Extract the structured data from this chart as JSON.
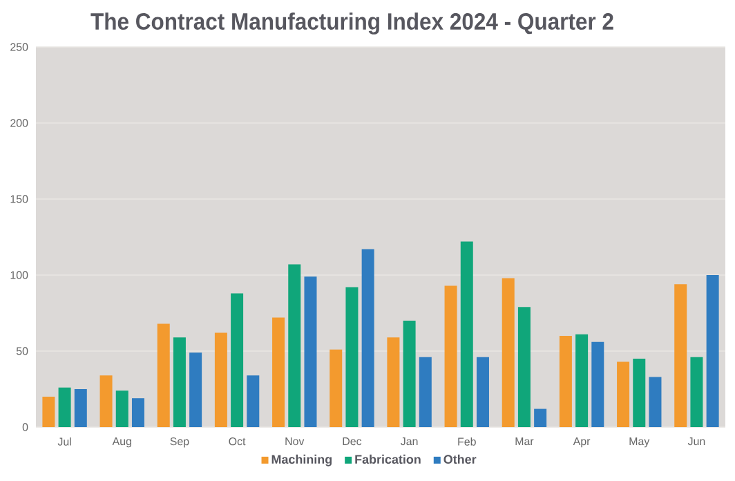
{
  "chart_data": {
    "type": "bar",
    "title": "The Contract Manufacturing Index 2024 - Quarter 2",
    "categories": [
      "Jul",
      "Aug",
      "Sep",
      "Oct",
      "Nov",
      "Dec",
      "Jan",
      "Feb",
      "Mar",
      "Apr",
      "May",
      "Jun"
    ],
    "series": [
      {
        "name": "Machining",
        "color": "#f39a2e",
        "values": [
          20,
          34,
          68,
          62,
          72,
          51,
          59,
          93,
          98,
          60,
          43,
          94
        ]
      },
      {
        "name": "Fabrication",
        "color": "#10a67a",
        "values": [
          26,
          24,
          59,
          88,
          107,
          92,
          70,
          122,
          79,
          61,
          45,
          46
        ]
      },
      {
        "name": "Other",
        "color": "#2f7cc0",
        "values": [
          25,
          19,
          49,
          34,
          99,
          117,
          46,
          46,
          12,
          56,
          33,
          100
        ]
      }
    ],
    "ylim": [
      0,
      250
    ],
    "yticks": [
      0,
      50,
      100,
      150,
      200,
      250
    ],
    "grid": "y",
    "legend": "bottom"
  }
}
